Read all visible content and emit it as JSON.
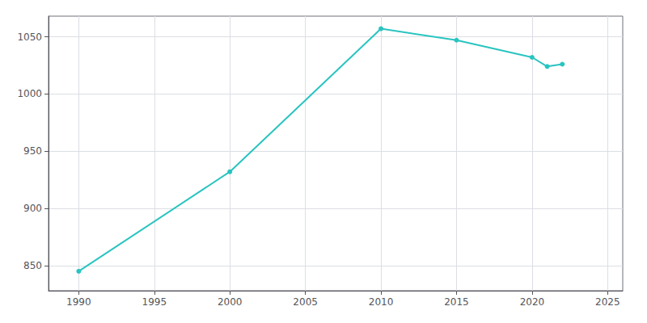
{
  "chart_data": {
    "type": "line",
    "x": [
      1990,
      2000,
      2010,
      2015,
      2020,
      2021,
      2022
    ],
    "values": [
      845,
      932,
      1057,
      1047,
      1032,
      1024,
      1026
    ],
    "color": "#29c4c0",
    "marker": "circle",
    "xlim": [
      1988,
      2026
    ],
    "ylim": [
      828,
      1068
    ],
    "xticks": [
      1990,
      1995,
      2000,
      2005,
      2010,
      2015,
      2020,
      2025
    ],
    "yticks": [
      850,
      900,
      950,
      1000,
      1050
    ],
    "grid": true
  }
}
